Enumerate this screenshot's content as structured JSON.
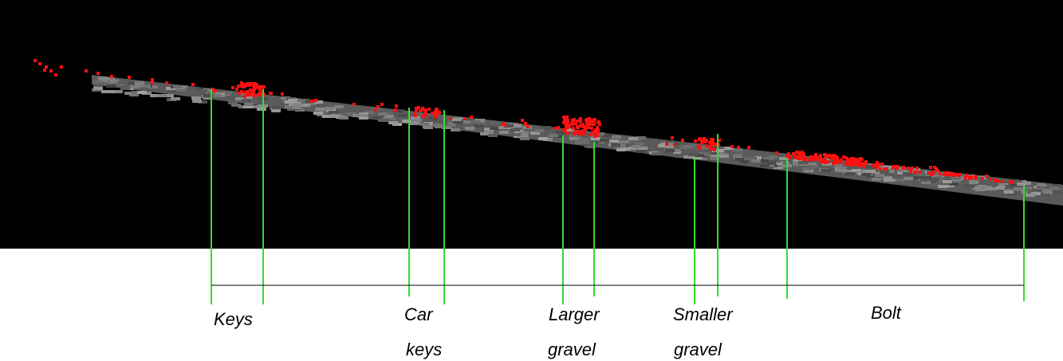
{
  "labels": [
    {
      "lines": [
        "Keys"
      ]
    },
    {
      "lines": [
        "Car",
        "keys"
      ]
    },
    {
      "lines": [
        "Larger",
        "gravel"
      ]
    },
    {
      "lines": [
        "Smaller",
        "gravel"
      ]
    },
    {
      "lines": [
        "Bolt"
      ]
    }
  ]
}
